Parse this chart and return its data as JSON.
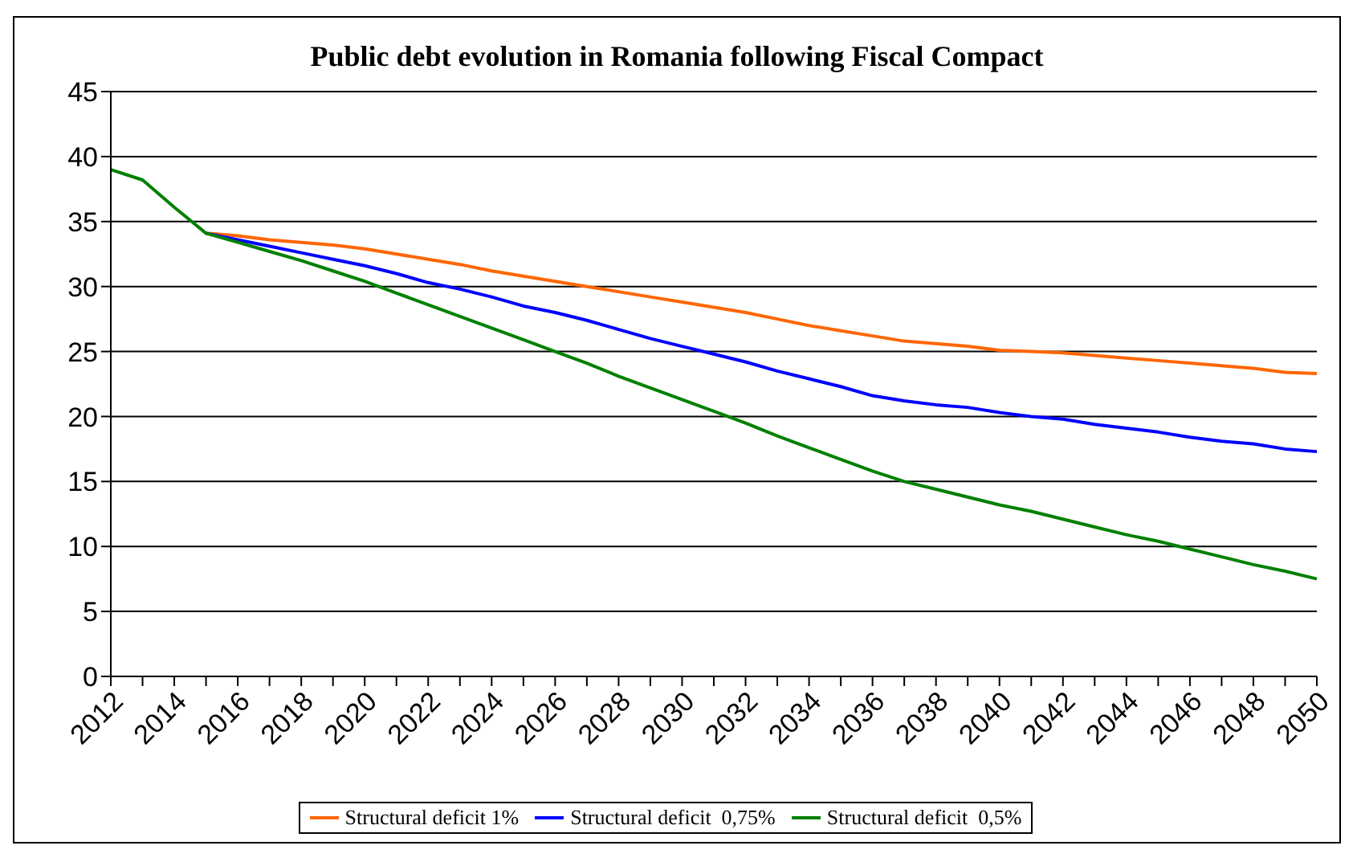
{
  "chart_data": {
    "type": "line",
    "title": "Public debt evolution in Romania following Fiscal Compact",
    "categories": [
      "2012",
      null,
      "2014",
      null,
      "2016",
      null,
      "2018",
      null,
      "2020",
      null,
      "2022",
      null,
      "2024",
      null,
      "2026",
      null,
      "2028",
      null,
      "2030",
      null,
      "2032",
      null,
      "2034",
      null,
      "2036",
      null,
      "2038",
      null,
      "2040",
      null,
      "2042",
      null,
      "2044",
      null,
      "2046",
      null,
      "2048",
      null,
      "2050"
    ],
    "series": [
      {
        "name": "Structural deficit 1%",
        "color": "#ff6600",
        "values": [
          null,
          null,
          null,
          34.1,
          33.9,
          33.6,
          33.4,
          33.2,
          32.9,
          32.5,
          32.1,
          31.7,
          31.2,
          30.8,
          30.4,
          30.0,
          29.6,
          29.2,
          28.8,
          28.4,
          28.0,
          27.5,
          27.0,
          26.6,
          26.2,
          25.8,
          25.6,
          25.4,
          25.1,
          25.0,
          24.9,
          24.7,
          24.5,
          24.3,
          24.1,
          23.9,
          23.7,
          23.4,
          23.3
        ]
      },
      {
        "name": "Structural deficit  0,75%",
        "color": "#0000ff",
        "values": [
          null,
          null,
          null,
          34.1,
          33.6,
          33.1,
          32.6,
          32.1,
          31.6,
          31.0,
          30.3,
          29.8,
          29.2,
          28.5,
          28.0,
          27.4,
          26.7,
          26.0,
          25.4,
          24.8,
          24.2,
          23.5,
          22.9,
          22.3,
          21.6,
          21.2,
          20.9,
          20.7,
          20.3,
          20.0,
          19.8,
          19.4,
          19.1,
          18.8,
          18.4,
          18.1,
          17.9,
          17.5,
          17.3
        ]
      },
      {
        "name": "Structural deficit  0,5%",
        "color": "#008000",
        "values": [
          39,
          38.2,
          36.1,
          34.1,
          33.4,
          32.7,
          32.0,
          31.2,
          30.4,
          29.5,
          28.6,
          27.7,
          26.8,
          25.9,
          25.0,
          24.1,
          23.1,
          22.2,
          21.3,
          20.4,
          19.5,
          18.5,
          17.6,
          16.7,
          15.8,
          15.0,
          14.4,
          13.8,
          13.2,
          12.7,
          12.1,
          11.5,
          10.9,
          10.4,
          9.8,
          9.2,
          8.6,
          8.1,
          7.5
        ]
      }
    ],
    "ylim": [
      0,
      45
    ],
    "yticks": [
      0,
      5,
      10,
      15,
      20,
      25,
      30,
      35,
      40,
      45
    ],
    "grid": "y",
    "legend": "bottom",
    "marker": "none",
    "line_style": "solid"
  }
}
